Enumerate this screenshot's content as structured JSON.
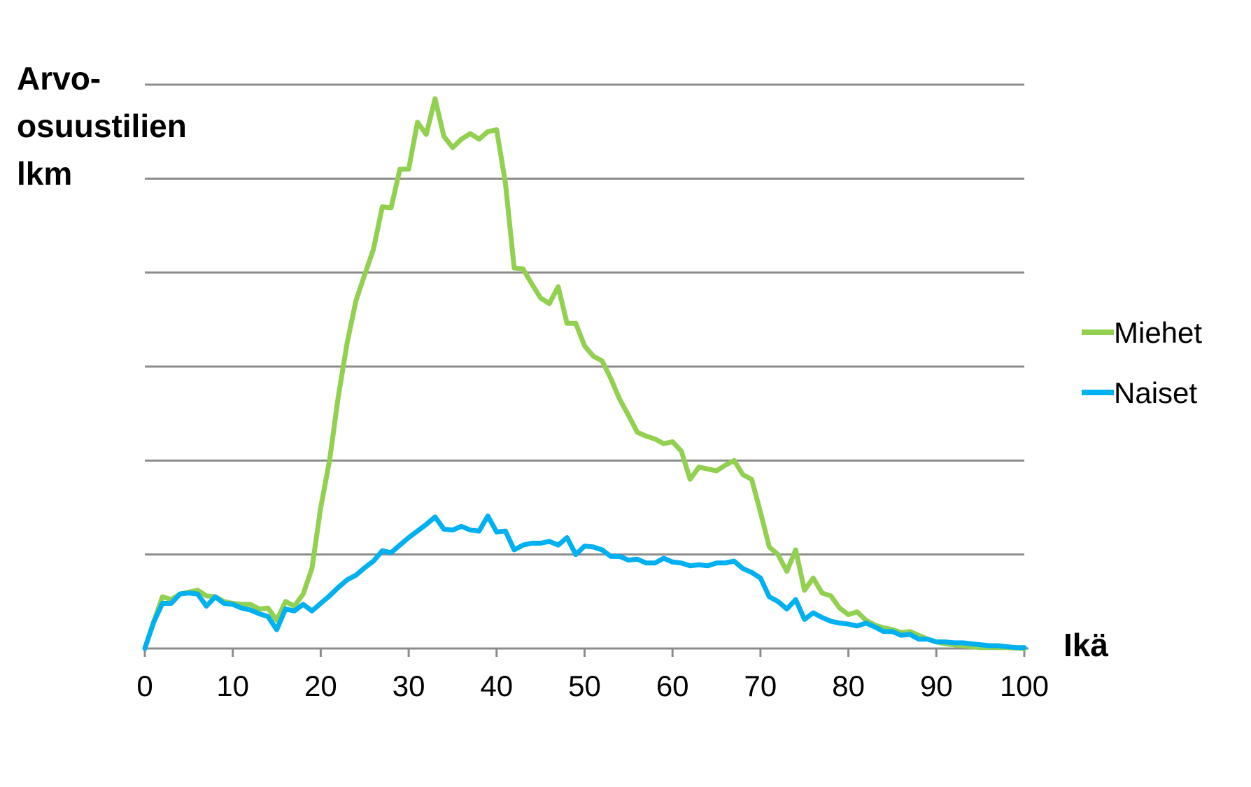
{
  "chart_data": {
    "type": "line",
    "ylabel_lines": [
      "Arvo-",
      "osuustilien",
      "lkm"
    ],
    "xlabel": "Ikä",
    "xlim": [
      0,
      100
    ],
    "ylim": [
      0,
      6
    ],
    "xticks": [
      "0",
      "10",
      "20",
      "30",
      "40",
      "50",
      "60",
      "70",
      "80",
      "90",
      "100"
    ],
    "yticks_labels": [],
    "grid": "horizontal",
    "legend_position": "right",
    "series": [
      {
        "name": "Miehet",
        "color": "#92d050",
        "x": [
          0,
          1,
          2,
          3,
          4,
          5,
          6,
          7,
          8,
          9,
          10,
          11,
          12,
          13,
          14,
          15,
          16,
          17,
          18,
          19,
          20,
          21,
          22,
          23,
          24,
          25,
          26,
          27,
          28,
          29,
          30,
          31,
          32,
          33,
          34,
          35,
          36,
          37,
          38,
          39,
          40,
          41,
          42,
          43,
          44,
          45,
          46,
          47,
          48,
          49,
          50,
          51,
          52,
          53,
          54,
          55,
          56,
          57,
          58,
          59,
          60,
          61,
          62,
          63,
          64,
          65,
          66,
          67,
          68,
          69,
          70,
          71,
          72,
          73,
          74,
          75,
          76,
          77,
          78,
          79,
          80,
          81,
          82,
          83,
          84,
          85,
          86,
          87,
          88,
          89,
          90,
          91,
          92,
          93,
          94,
          95,
          96,
          97,
          98,
          99,
          100
        ],
        "y": [
          0,
          0.28,
          0.55,
          0.52,
          0.58,
          0.6,
          0.62,
          0.56,
          0.55,
          0.5,
          0.48,
          0.47,
          0.47,
          0.42,
          0.43,
          0.3,
          0.5,
          0.45,
          0.58,
          0.85,
          1.5,
          2.0,
          2.68,
          3.25,
          3.7,
          3.98,
          4.25,
          4.7,
          4.69,
          5.1,
          5.1,
          5.6,
          5.47,
          5.85,
          5.45,
          5.33,
          5.42,
          5.48,
          5.42,
          5.5,
          5.52,
          4.95,
          4.05,
          4.04,
          3.88,
          3.73,
          3.67,
          3.85,
          3.46,
          3.46,
          3.22,
          3.11,
          3.06,
          2.87,
          2.65,
          2.48,
          2.3,
          2.26,
          2.23,
          2.18,
          2.2,
          2.1,
          1.8,
          1.93,
          1.91,
          1.89,
          1.95,
          2.0,
          1.85,
          1.8,
          1.45,
          1.08,
          1.0,
          0.82,
          1.05,
          0.62,
          0.75,
          0.59,
          0.56,
          0.43,
          0.36,
          0.39,
          0.3,
          0.25,
          0.22,
          0.2,
          0.17,
          0.18,
          0.14,
          0.1,
          0.07,
          0.05,
          0.04,
          0.03,
          0.02,
          0.01,
          0.01,
          0.01,
          0.01,
          0.005,
          0
        ]
      },
      {
        "name": "Naiset",
        "color": "#00b0f0",
        "x": [
          0,
          1,
          2,
          3,
          4,
          5,
          6,
          7,
          8,
          9,
          10,
          11,
          12,
          13,
          14,
          15,
          16,
          17,
          18,
          19,
          20,
          21,
          22,
          23,
          24,
          25,
          26,
          27,
          28,
          29,
          30,
          31,
          32,
          33,
          34,
          35,
          36,
          37,
          38,
          39,
          40,
          41,
          42,
          43,
          44,
          45,
          46,
          47,
          48,
          49,
          50,
          51,
          52,
          53,
          54,
          55,
          56,
          57,
          58,
          59,
          60,
          61,
          62,
          63,
          64,
          65,
          66,
          67,
          68,
          69,
          70,
          71,
          72,
          73,
          74,
          75,
          76,
          77,
          78,
          79,
          80,
          81,
          82,
          83,
          84,
          85,
          86,
          87,
          88,
          89,
          90,
          91,
          92,
          93,
          94,
          95,
          96,
          97,
          98,
          99,
          100
        ],
        "y": [
          0,
          0.28,
          0.48,
          0.48,
          0.58,
          0.59,
          0.58,
          0.45,
          0.55,
          0.48,
          0.47,
          0.43,
          0.41,
          0.37,
          0.34,
          0.2,
          0.42,
          0.4,
          0.47,
          0.4,
          0.48,
          0.56,
          0.65,
          0.73,
          0.78,
          0.86,
          0.93,
          1.04,
          1.02,
          1.1,
          1.18,
          1.25,
          1.32,
          1.4,
          1.27,
          1.26,
          1.3,
          1.26,
          1.25,
          1.41,
          1.24,
          1.25,
          1.05,
          1.1,
          1.12,
          1.12,
          1.14,
          1.1,
          1.18,
          1.0,
          1.09,
          1.08,
          1.05,
          0.98,
          0.98,
          0.94,
          0.95,
          0.91,
          0.91,
          0.96,
          0.92,
          0.91,
          0.88,
          0.89,
          0.88,
          0.91,
          0.91,
          0.93,
          0.85,
          0.81,
          0.75,
          0.55,
          0.5,
          0.42,
          0.52,
          0.31,
          0.38,
          0.33,
          0.29,
          0.27,
          0.26,
          0.24,
          0.27,
          0.23,
          0.18,
          0.18,
          0.14,
          0.15,
          0.1,
          0.1,
          0.07,
          0.07,
          0.06,
          0.06,
          0.05,
          0.04,
          0.03,
          0.03,
          0.02,
          0.01,
          0.01
        ]
      }
    ]
  }
}
